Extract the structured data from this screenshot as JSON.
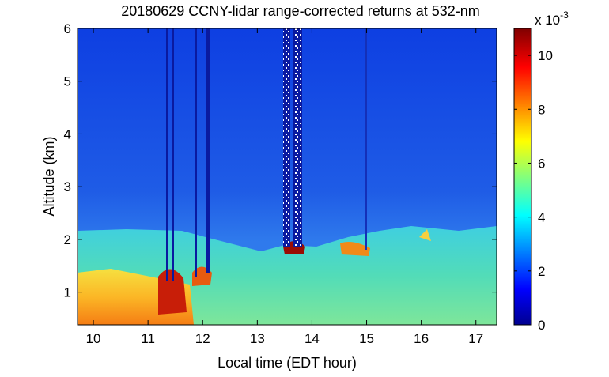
{
  "chart_data": {
    "type": "heatmap",
    "title": "20180629 CCNY-lidar range-corrected returns at 532-nm",
    "xlabel": "Local time (EDT hour)",
    "ylabel": "Altitude (km)",
    "xlim": [
      9.71,
      17.38
    ],
    "xticks": [
      10,
      11,
      12,
      13,
      14,
      15,
      16,
      17
    ],
    "ylim": [
      0.38,
      6
    ],
    "yticks": [
      1,
      2,
      3,
      4,
      5,
      6
    ],
    "colormap": "jet",
    "colorbar": {
      "clim": [
        0,
        11
      ],
      "ticks": [
        0,
        2,
        4,
        6,
        8,
        10
      ],
      "multiplier": "x 10",
      "exponent": "-3"
    }
  }
}
